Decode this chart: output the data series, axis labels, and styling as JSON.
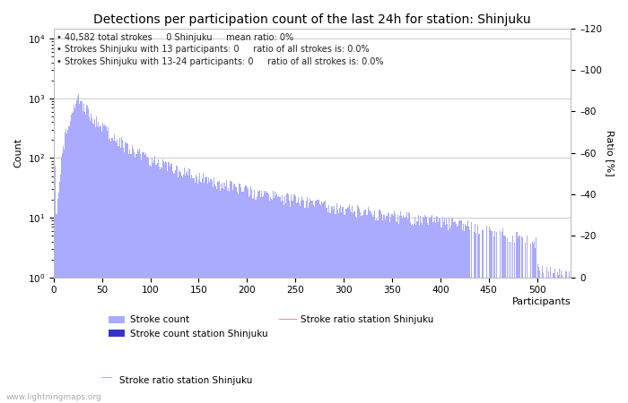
{
  "title": "Detections per participation count of the last 24h for station: Shinjuku",
  "xlabel": "Participants",
  "ylabel_left": "Count",
  "ylabel_right": "Ratio [%]",
  "annotation_lines": [
    "40,582 total strokes     0 Shinjuku     mean ratio: 0%",
    "Strokes Shinjuku with 13 participants: 0     ratio of all strokes is: 0.0%",
    "Strokes Shinjuku with 13-24 participants: 0     ratio of all strokes is: 0.0%"
  ],
  "bar_color": "#aaaaff",
  "bar_color_station": "#3333cc",
  "ratio_line_color": "#ee88bb",
  "background_color": "#ffffff",
  "grid_color": "#cccccc",
  "text_color": "#000000",
  "watermark": "www.lightningmaps.org",
  "xlim": [
    0,
    535
  ],
  "ylim_right": [
    0,
    120
  ],
  "right_yticks": [
    0,
    20,
    40,
    60,
    80,
    100,
    120
  ],
  "legend_entries": [
    "Stroke count",
    "Stroke count station Shinjuku",
    "Stroke ratio station Shinjuku"
  ],
  "title_fontsize": 10,
  "annotation_fontsize": 7,
  "axis_fontsize": 8,
  "tick_fontsize": 7.5
}
